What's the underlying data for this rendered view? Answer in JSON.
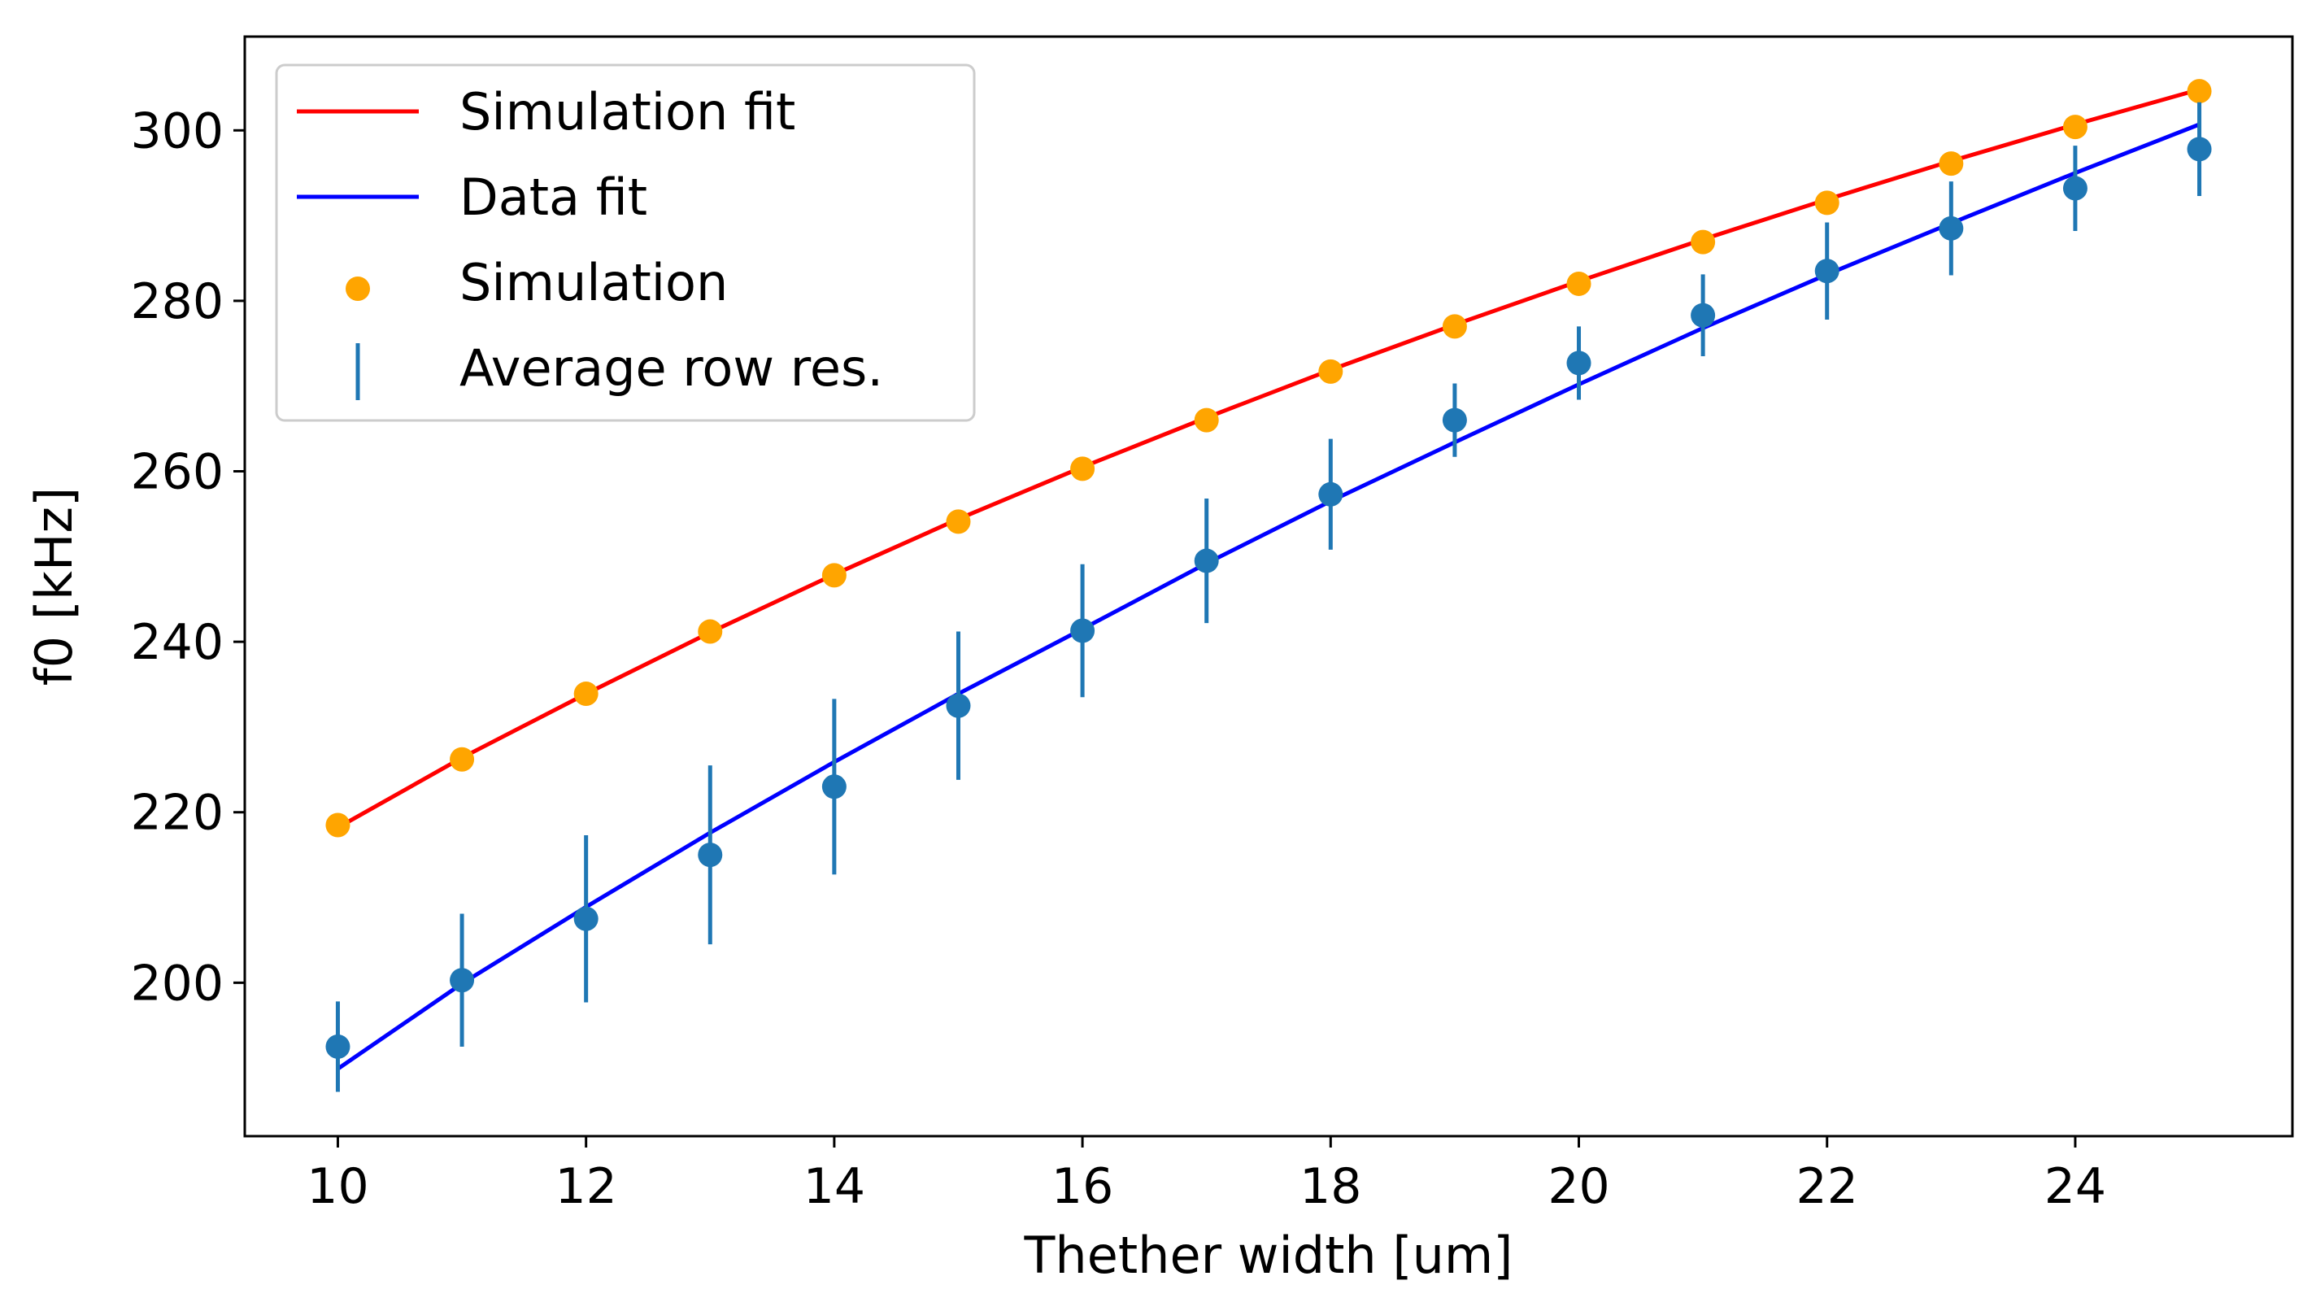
{
  "chart_data": {
    "type": "line",
    "title": "",
    "xlabel": "Thether width [um]",
    "ylabel": "f0 [kHz]",
    "xlim": [
      9.25,
      25.75
    ],
    "ylim": [
      182,
      311
    ],
    "xticks": [
      10,
      12,
      14,
      16,
      18,
      20,
      22,
      24
    ],
    "yticks": [
      200,
      220,
      240,
      260,
      280,
      300
    ],
    "grid": false,
    "legend_position": "top-left",
    "x": [
      10,
      11,
      12,
      13,
      14,
      15,
      16,
      17,
      18,
      19,
      20,
      21,
      22,
      23,
      24,
      25
    ],
    "series": [
      {
        "name": "Simulation fit",
        "kind": "line",
        "color": "#ff0000",
        "values": [
          218.2,
          226.4,
          233.9,
          241.1,
          247.9,
          254.4,
          260.5,
          266.3,
          271.9,
          277.2,
          282.3,
          287.2,
          291.9,
          296.4,
          300.7,
          304.8
        ]
      },
      {
        "name": "Data fit",
        "kind": "line",
        "color": "#0000ff",
        "values": [
          189.9,
          199.9,
          208.9,
          217.6,
          225.9,
          233.9,
          241.5,
          249.2,
          256.5,
          263.4,
          270.2,
          276.8,
          283.1,
          289.1,
          295.0,
          300.7
        ]
      },
      {
        "name": "Simulation",
        "kind": "scatter",
        "color": "#ffa500",
        "values": [
          218.5,
          226.2,
          233.9,
          241.2,
          247.8,
          254.1,
          260.3,
          266.0,
          271.7,
          277.0,
          282.0,
          286.9,
          291.5,
          296.1,
          300.4,
          304.6
        ]
      },
      {
        "name": "Average row res.",
        "kind": "errorbar",
        "color": "#1f77b4",
        "values": [
          192.5,
          200.3,
          207.5,
          215.0,
          223.0,
          232.5,
          241.3,
          249.5,
          257.3,
          266.0,
          272.7,
          278.3,
          283.5,
          288.5,
          293.2,
          297.8
        ],
        "errors": [
          5.3,
          7.8,
          9.8,
          10.5,
          10.3,
          8.7,
          7.8,
          7.3,
          6.5,
          4.3,
          4.3,
          4.8,
          5.7,
          5.5,
          5.0,
          5.5
        ]
      }
    ]
  }
}
